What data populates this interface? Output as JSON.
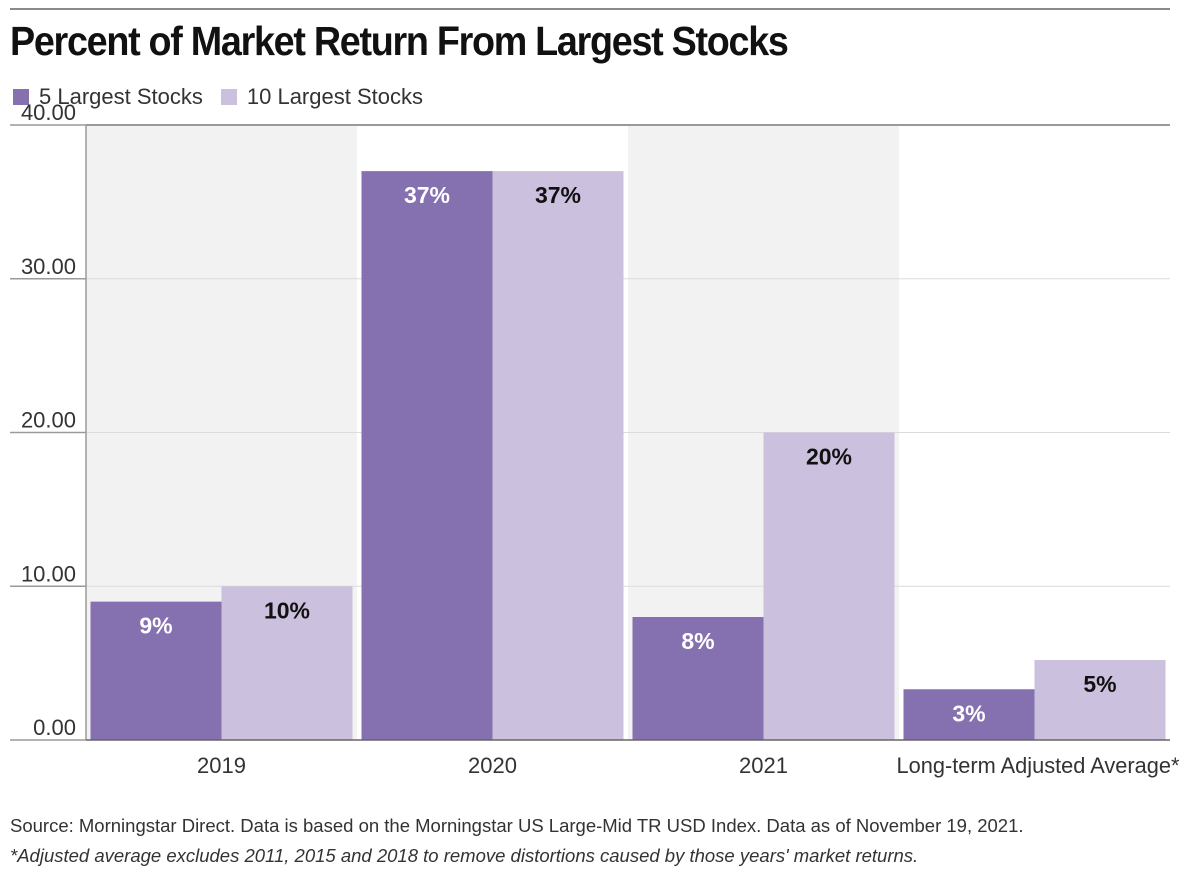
{
  "chart_data": {
    "type": "bar",
    "title": "Percent of Market Return From Largest Stocks",
    "categories": [
      "2019",
      "2020",
      "2021",
      "Long-term Adjusted Average*"
    ],
    "series": [
      {
        "name": "5 Largest Stocks",
        "color": "#8570b0",
        "values": [
          9,
          37,
          8,
          3.3
        ],
        "labels": [
          "9%",
          "37%",
          "8%",
          "3%"
        ],
        "label_color": "#ffffff"
      },
      {
        "name": "10 Largest Stocks",
        "color": "#cbc0dd",
        "values": [
          10,
          37,
          20,
          5.2
        ],
        "labels": [
          "10%",
          "37%",
          "20%",
          "5%"
        ],
        "label_color": "#111111"
      }
    ],
    "yticks": [
      "0.00",
      "10.00",
      "20.00",
      "30.00",
      "40.00"
    ],
    "ylim": [
      0,
      40
    ],
    "grid": true,
    "legend": "top-left",
    "band_color": "#f2f2f2"
  },
  "footer": {
    "source": "Source: Morningstar Direct. Data is based on the Morningstar US Large-Mid TR USD Index. Data as of November 19, 2021.",
    "note": "*Adjusted average excludes 2011, 2015 and 2018 to remove distortions caused by those years' market returns."
  }
}
